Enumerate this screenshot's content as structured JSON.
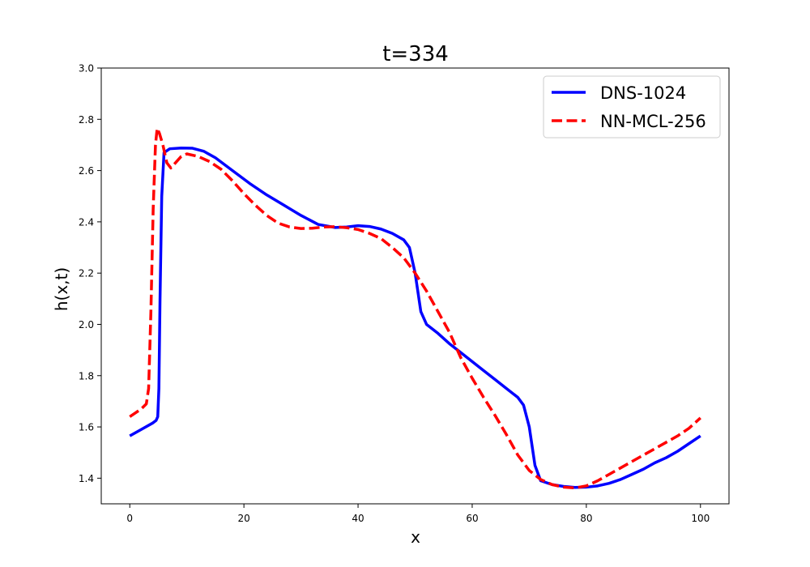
{
  "chart_data": {
    "type": "line",
    "title": "t=334",
    "xlabel": "x",
    "ylabel": "h(x,t)",
    "xlim": [
      -5,
      105
    ],
    "ylim": [
      1.3,
      3.0
    ],
    "x_ticks": [
      0,
      20,
      40,
      60,
      80,
      100
    ],
    "x_tick_labels": [
      "0",
      "20",
      "40",
      "60",
      "80",
      "100"
    ],
    "y_ticks": [
      1.4,
      1.6,
      1.8,
      2.0,
      2.2,
      2.4,
      2.6,
      2.8,
      3.0
    ],
    "y_tick_labels": [
      "1.4",
      "1.6",
      "1.8",
      "2.0",
      "2.2",
      "2.4",
      "2.6",
      "2.8",
      "3.0"
    ],
    "grid": false,
    "legend_position": "top-right",
    "series": [
      {
        "name": "DNS-1024",
        "color": "#0000ff",
        "style": "solid",
        "points": [
          [
            0,
            1.565
          ],
          [
            2,
            1.59
          ],
          [
            4,
            1.615
          ],
          [
            4.6,
            1.625
          ],
          [
            4.9,
            1.64
          ],
          [
            5.1,
            1.75
          ],
          [
            5.3,
            2.1
          ],
          [
            5.6,
            2.5
          ],
          [
            6,
            2.67
          ],
          [
            7,
            2.685
          ],
          [
            9,
            2.688
          ],
          [
            11,
            2.687
          ],
          [
            13,
            2.675
          ],
          [
            15,
            2.65
          ],
          [
            18,
            2.6
          ],
          [
            21,
            2.55
          ],
          [
            24,
            2.505
          ],
          [
            27,
            2.465
          ],
          [
            30,
            2.425
          ],
          [
            33,
            2.39
          ],
          [
            36,
            2.378
          ],
          [
            38,
            2.38
          ],
          [
            40,
            2.385
          ],
          [
            42,
            2.382
          ],
          [
            44,
            2.372
          ],
          [
            46,
            2.355
          ],
          [
            48,
            2.33
          ],
          [
            49,
            2.3
          ],
          [
            50,
            2.2
          ],
          [
            51,
            2.05
          ],
          [
            52,
            2.0
          ],
          [
            54,
            1.965
          ],
          [
            56,
            1.925
          ],
          [
            58,
            1.89
          ],
          [
            60,
            1.855
          ],
          [
            62,
            1.82
          ],
          [
            64,
            1.785
          ],
          [
            66,
            1.75
          ],
          [
            68,
            1.715
          ],
          [
            69,
            1.685
          ],
          [
            70,
            1.6
          ],
          [
            71,
            1.45
          ],
          [
            72,
            1.39
          ],
          [
            74,
            1.375
          ],
          [
            76,
            1.368
          ],
          [
            78,
            1.364
          ],
          [
            80,
            1.365
          ],
          [
            82,
            1.37
          ],
          [
            84,
            1.38
          ],
          [
            86,
            1.395
          ],
          [
            88,
            1.415
          ],
          [
            90,
            1.435
          ],
          [
            92,
            1.46
          ],
          [
            94,
            1.48
          ],
          [
            96,
            1.505
          ],
          [
            98,
            1.535
          ],
          [
            100,
            1.565
          ]
        ]
      },
      {
        "name": "NN-MCL-256",
        "color": "#ff0000",
        "style": "dashed",
        "points": [
          [
            0,
            1.64
          ],
          [
            1,
            1.655
          ],
          [
            2,
            1.67
          ],
          [
            2.9,
            1.69
          ],
          [
            3.3,
            1.75
          ],
          [
            3.7,
            2.05
          ],
          [
            4.1,
            2.45
          ],
          [
            4.5,
            2.7
          ],
          [
            4.8,
            2.765
          ],
          [
            5.2,
            2.745
          ],
          [
            5.8,
            2.7
          ],
          [
            6.5,
            2.63
          ],
          [
            7.2,
            2.61
          ],
          [
            8,
            2.63
          ],
          [
            9,
            2.655
          ],
          [
            10,
            2.665
          ],
          [
            12,
            2.655
          ],
          [
            14,
            2.635
          ],
          [
            16,
            2.605
          ],
          [
            18,
            2.56
          ],
          [
            20,
            2.51
          ],
          [
            22,
            2.465
          ],
          [
            24,
            2.425
          ],
          [
            26,
            2.395
          ],
          [
            28,
            2.38
          ],
          [
            30,
            2.374
          ],
          [
            32,
            2.375
          ],
          [
            34,
            2.38
          ],
          [
            36,
            2.381
          ],
          [
            38,
            2.377
          ],
          [
            40,
            2.37
          ],
          [
            42,
            2.355
          ],
          [
            44,
            2.335
          ],
          [
            46,
            2.3
          ],
          [
            48,
            2.26
          ],
          [
            50,
            2.2
          ],
          [
            52,
            2.13
          ],
          [
            54,
            2.05
          ],
          [
            56,
            1.97
          ],
          [
            58,
            1.87
          ],
          [
            60,
            1.79
          ],
          [
            62,
            1.715
          ],
          [
            64,
            1.645
          ],
          [
            66,
            1.57
          ],
          [
            68,
            1.49
          ],
          [
            70,
            1.43
          ],
          [
            72,
            1.395
          ],
          [
            74,
            1.375
          ],
          [
            76,
            1.365
          ],
          [
            78,
            1.362
          ],
          [
            80,
            1.37
          ],
          [
            82,
            1.39
          ],
          [
            84,
            1.415
          ],
          [
            86,
            1.44
          ],
          [
            88,
            1.465
          ],
          [
            90,
            1.49
          ],
          [
            92,
            1.515
          ],
          [
            94,
            1.54
          ],
          [
            96,
            1.565
          ],
          [
            98,
            1.595
          ],
          [
            100,
            1.635
          ]
        ]
      }
    ]
  }
}
